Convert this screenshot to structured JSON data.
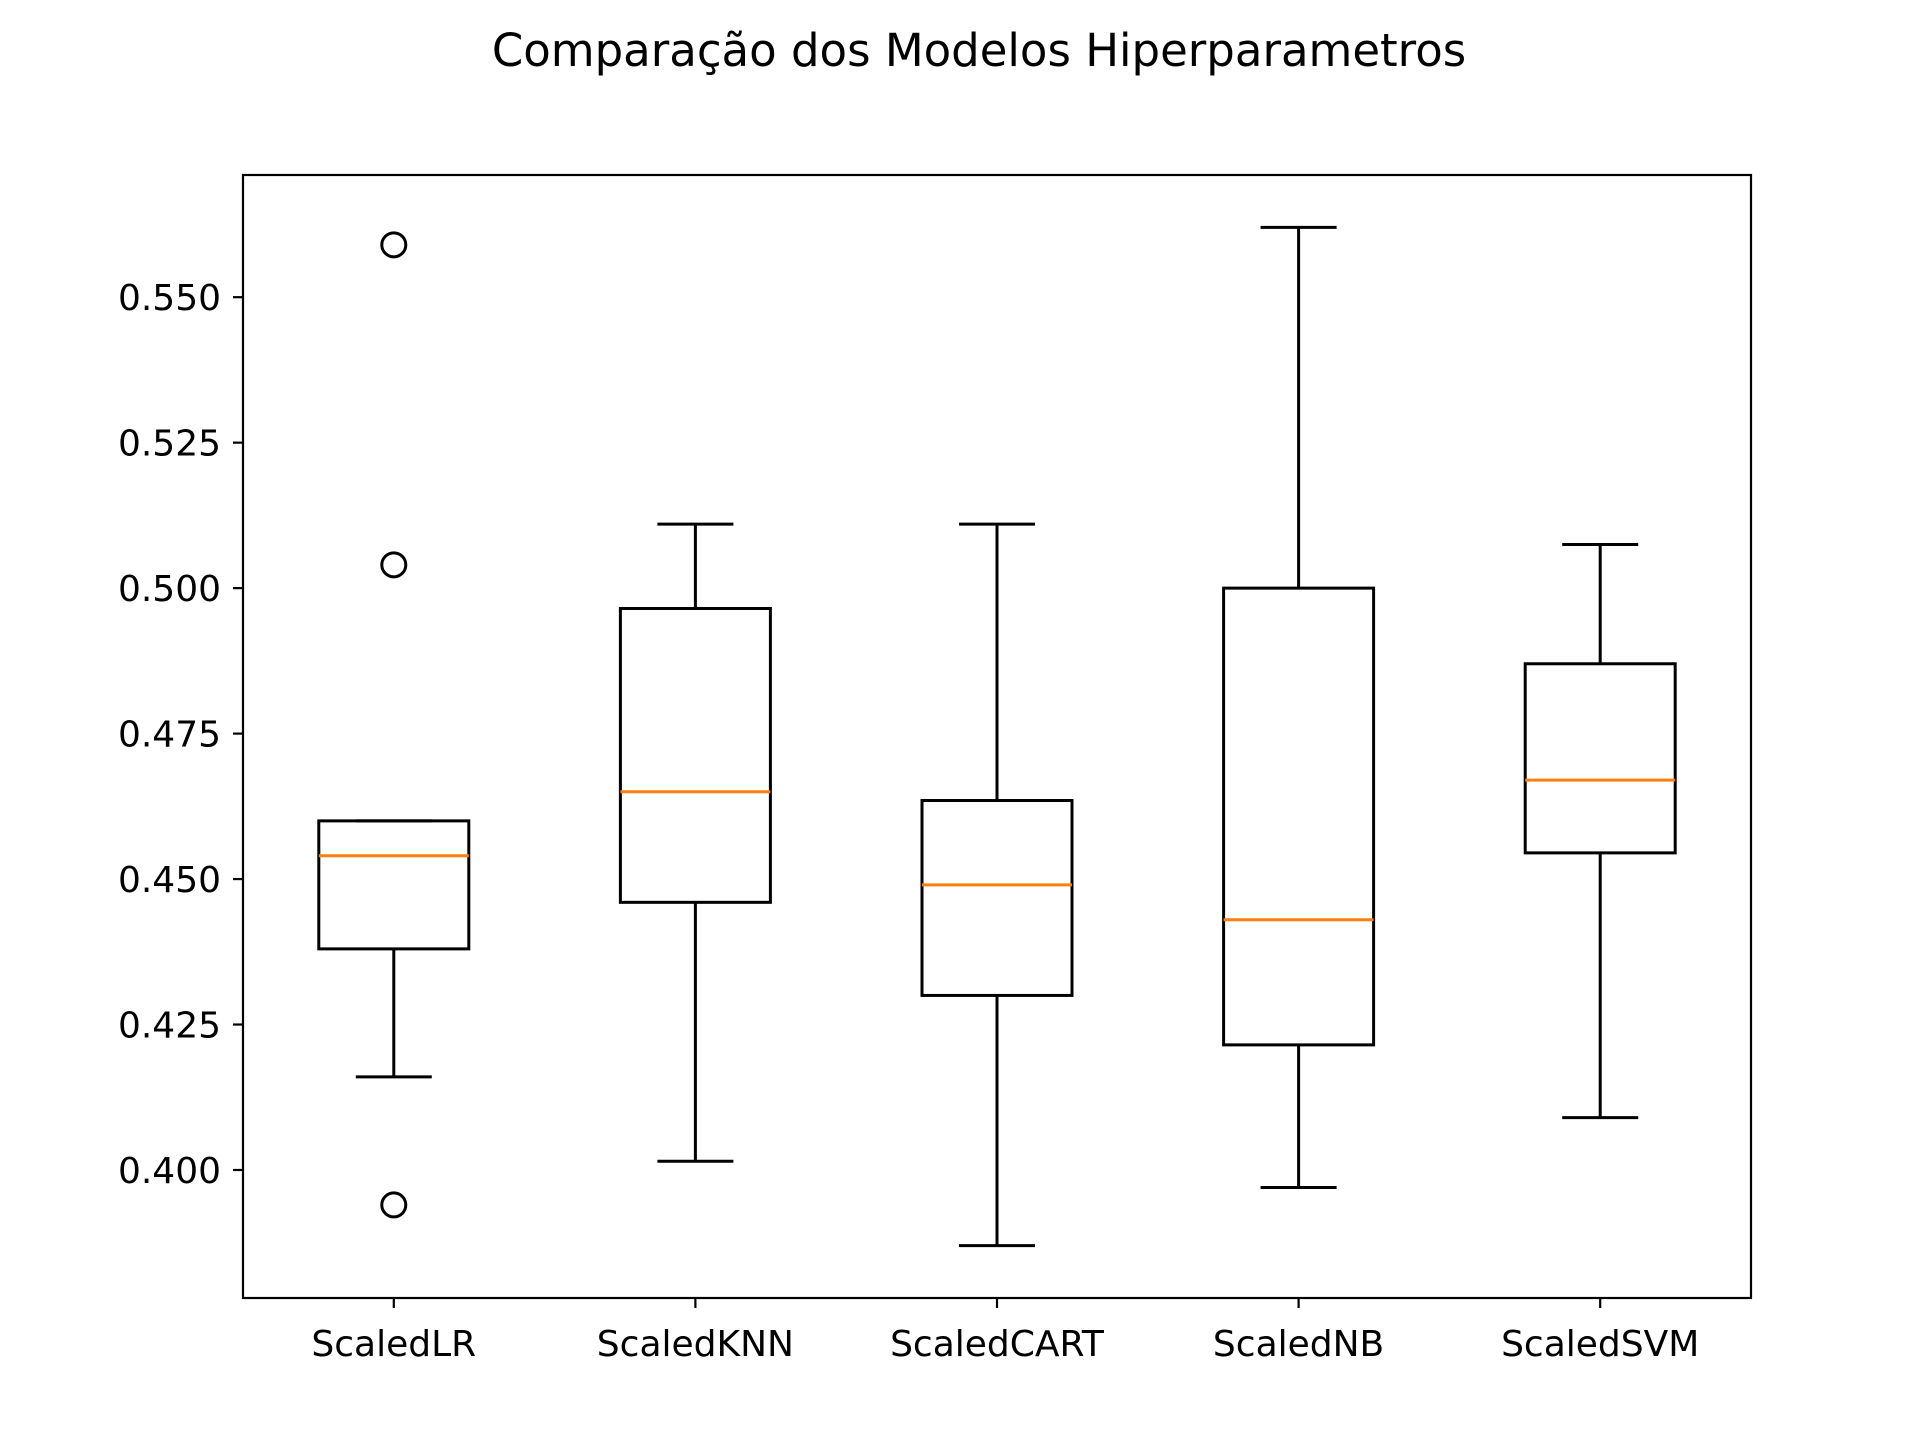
{
  "chart_data": {
    "type": "boxplot",
    "title": "Comparação dos Modelos Hiperparametros",
    "xlabel": "",
    "ylabel": "",
    "ylim": [
      0.378,
      0.571
    ],
    "yticks": [
      0.4,
      0.425,
      0.45,
      0.475,
      0.5,
      0.525,
      0.55
    ],
    "ytick_labels": [
      "0.400",
      "0.425",
      "0.450",
      "0.475",
      "0.500",
      "0.525",
      "0.550"
    ],
    "categories": [
      "ScaledLR",
      "ScaledKNN",
      "ScaledCART",
      "ScaledNB",
      "ScaledSVM"
    ],
    "boxes": [
      {
        "label": "ScaledLR",
        "whisker_low": 0.416,
        "q1": 0.438,
        "median": 0.454,
        "q3": 0.46,
        "whisker_high": 0.46,
        "outliers": [
          0.559,
          0.504,
          0.394
        ]
      },
      {
        "label": "ScaledKNN",
        "whisker_low": 0.4015,
        "q1": 0.446,
        "median": 0.465,
        "q3": 0.4965,
        "whisker_high": 0.511,
        "outliers": []
      },
      {
        "label": "ScaledCART",
        "whisker_low": 0.387,
        "q1": 0.43,
        "median": 0.449,
        "q3": 0.4635,
        "whisker_high": 0.511,
        "outliers": []
      },
      {
        "label": "ScaledNB",
        "whisker_low": 0.397,
        "q1": 0.4215,
        "median": 0.443,
        "q3": 0.5,
        "whisker_high": 0.562,
        "outliers": []
      },
      {
        "label": "ScaledSVM",
        "whisker_low": 0.409,
        "q1": 0.4545,
        "median": 0.467,
        "q3": 0.487,
        "whisker_high": 0.5075,
        "outliers": []
      }
    ],
    "grid": false,
    "legend": "none",
    "colors": {
      "box": "#000000",
      "median": "#ff7f0e",
      "axes": "#000000",
      "background": "#ffffff"
    }
  }
}
